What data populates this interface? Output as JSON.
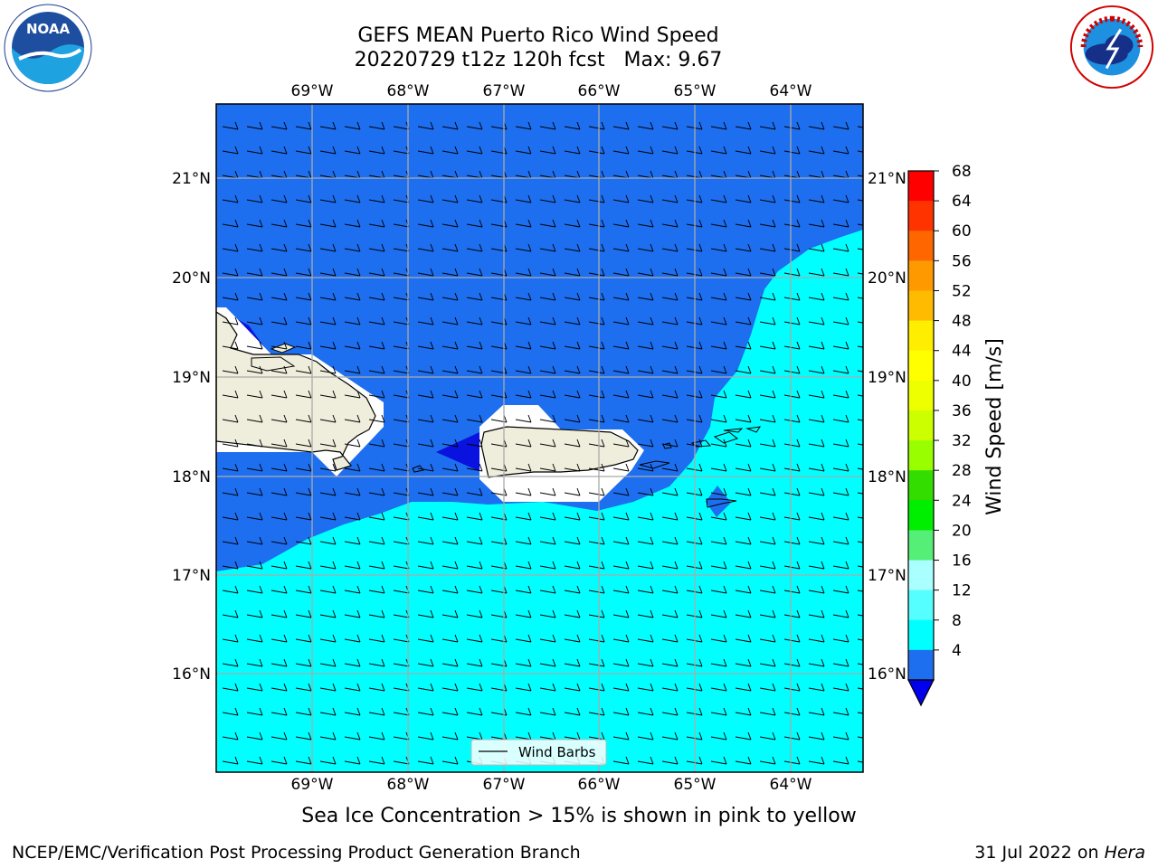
{
  "header": {
    "title_line1": "GEFS MEAN Puerto Rico Wind Speed",
    "title_line2": "20220729 t12z 120h fcst   Max: 9.67"
  },
  "map": {
    "lon_labels": [
      "69°W",
      "68°W",
      "67°W",
      "66°W",
      "65°W",
      "64°W"
    ],
    "lat_labels": [
      "21°N",
      "20°N",
      "19°N",
      "18°N",
      "17°N",
      "16°N"
    ],
    "colors": {
      "water_4_8": "#1e6ff0",
      "water_8_12": "#00ffff",
      "water_below_4": "#0a12e0",
      "land": "#efeedc",
      "grid": "#aaaaaa"
    }
  },
  "legend": {
    "label": "Wind Barbs"
  },
  "colorbar": {
    "title": "Wind Speed [m/s]",
    "ticks": [
      "68",
      "64",
      "60",
      "56",
      "52",
      "48",
      "44",
      "40",
      "36",
      "32",
      "28",
      "24",
      "20",
      "16",
      "12",
      "8",
      "4"
    ],
    "colors": [
      "#ff0000",
      "#ff3300",
      "#ff6600",
      "#ff9900",
      "#ffbb00",
      "#ffee00",
      "#ffff00",
      "#eeff00",
      "#ccff00",
      "#99ff00",
      "#33dd00",
      "#00ee00",
      "#55ee77",
      "#aaffff",
      "#55ffff",
      "#00ffff",
      "#1e6ff0"
    ],
    "extend_color": "#0000ee"
  },
  "footer": {
    "subtitle": "Sea Ice Concentration > 15% is shown in pink to yellow",
    "left": "NCEP/EMC/Verification Post Processing Product Generation Branch",
    "right_date": "31 Jul 2022 on ",
    "right_host": "Hera"
  },
  "logos": {
    "noaa_text": "NOAA",
    "nws_text": "NATIONAL WEATHER SERVICE"
  }
}
